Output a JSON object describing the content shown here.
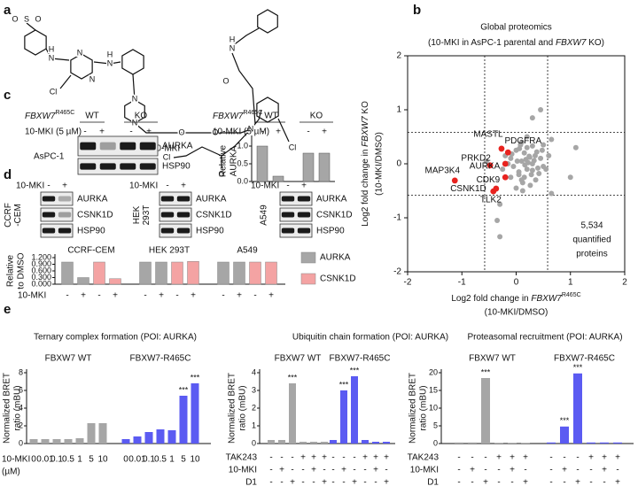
{
  "panel_labels": [
    "a",
    "b",
    "c",
    "d",
    "e"
  ],
  "a": {
    "compound": "10-MKI",
    "atoms": [
      "S",
      "O",
      "O",
      "N",
      "H",
      "N",
      "N",
      "Cl",
      "N",
      "H",
      "N",
      "N",
      "O",
      "O",
      "N",
      "N",
      "H",
      "O",
      "O",
      "Cl",
      "Cl"
    ]
  },
  "c_blot": {
    "genotype": {
      "gene": "FBXW7",
      "sup": "R465C"
    },
    "groups": [
      "WT",
      "KO"
    ],
    "treatment": "10-MKI (5 µM)",
    "signs": [
      "-",
      "+",
      "-",
      "+"
    ],
    "cell_line": "AsPC-1",
    "proteins": [
      "AURKA",
      "HSP90"
    ]
  },
  "d_blots": {
    "treatment": "10-MKI",
    "signs": [
      "-",
      "+"
    ],
    "proteins": [
      "AURKA",
      "CSNK1D",
      "HSP90"
    ],
    "cell_lines": [
      [
        "CCRF",
        "-CEM"
      ],
      [
        "HEK",
        "293T"
      ],
      [
        "A549"
      ]
    ]
  },
  "chart_data": [
    {
      "type": "scatter",
      "title": "Global proteomics",
      "subtitle": {
        "prefix": "(10-MKI in AsPC-1 parental and ",
        "gene": "FBXW7",
        "suffix": " KO)"
      },
      "xlabel": {
        "prefix": "Log2 fold change in ",
        "gene": "FBXW7",
        "sup": "R465C",
        "line2": "(10-MKI/DMSO)"
      },
      "ylabel": {
        "prefix": "Log2 fold change in ",
        "gene": "FBXW7",
        "suffix": " KO",
        "line2": "(10-MKI/DMSO)"
      },
      "xlim": [
        -2,
        2
      ],
      "ylim": [
        -2,
        2
      ],
      "xticks": [
        -2,
        -1,
        0,
        1,
        2
      ],
      "yticks": [
        -2,
        -1,
        0,
        1,
        2
      ],
      "thresholds": [
        -0.58,
        0.58
      ],
      "series": [
        {
          "color": "#a6a6a6",
          "x": [
            0.1,
            0.2,
            -0.1,
            0.05,
            0.3,
            0.15,
            -0.05,
            0.25,
            0.4,
            0.0,
            0.1,
            0.2,
            0.35,
            -0.15,
            0.05,
            0.18,
            0.28,
            0.12,
            -0.08,
            0.22,
            0.45,
            0.3,
            0.08,
            0.15,
            -0.2,
            0.5,
            0.38,
            0.02,
            0.26,
            0.1,
            0.33,
            0.6,
            0.55,
            0.2,
            -0.1,
            0.42,
            0.16,
            0.06,
            0.24,
            0.3,
            -0.25,
            0.12,
            0.48,
            0.36,
            0.0,
            -0.3,
            -0.35,
            0.45,
            0.3,
            1.1,
            1.0,
            0.65,
            -0.55,
            0.65,
            -0.3,
            0.5
          ],
          "y": [
            0.05,
            -0.1,
            0.1,
            -0.2,
            0.0,
            0.2,
            -0.05,
            0.12,
            -0.08,
            0.25,
            -0.3,
            0.3,
            0.15,
            0.0,
            -0.15,
            0.08,
            -0.2,
            -0.35,
            0.18,
            0.02,
            0.1,
            -0.12,
            0.35,
            -0.25,
            0.15,
            -0.05,
            0.22,
            0.05,
            -0.4,
            0.4,
            0.06,
            0.15,
            -0.1,
            0.5,
            -0.25,
            -0.18,
            -0.02,
            0.28,
            0.14,
            0.33,
            -0.1,
            -0.5,
            0.25,
            -0.3,
            -0.45,
            -1.35,
            -1.05,
            1.0,
            0.85,
            0.3,
            -0.25,
            -0.55,
            0.05,
            0.45,
            -0.75,
            0.35
          ]
        },
        {
          "color": "#e8231f",
          "labels": [
            "MASTL",
            "PDGFRA",
            "PRKD2",
            "AURKA",
            "MAP3K4",
            "CDK9",
            "CSNK1D",
            "TLK2"
          ],
          "x": [
            -0.27,
            -0.15,
            -0.48,
            -0.2,
            -1.13,
            -0.2,
            -0.42,
            -0.37
          ],
          "y": [
            0.28,
            0.21,
            -0.03,
            0.0,
            -0.31,
            -0.25,
            -0.51,
            -0.46
          ]
        }
      ],
      "annotation": [
        "5,534",
        "quantified",
        "proteins"
      ]
    },
    {
      "type": "bar",
      "ylabel": [
        "Relative",
        "AURKA"
      ],
      "genotype": {
        "gene": "FBXW7",
        "sup": "R465C"
      },
      "groups": [
        "WT",
        "KO"
      ],
      "treatment": "10-MKI (5 µM)",
      "categories": [
        "-",
        "+",
        "-",
        "+"
      ],
      "values": [
        1.0,
        0.15,
        0.8,
        0.8
      ],
      "color": "#a6a6a6",
      "ylim": [
        0,
        1.2
      ],
      "yticks": [
        {
          "value": 0,
          "label": "0.0"
        },
        {
          "value": 0.5,
          "label": "0.5"
        },
        {
          "value": 1,
          "label": "1.0"
        }
      ]
    },
    {
      "type": "grouped_bar",
      "ylabel": [
        "Relative",
        "to DMSO"
      ],
      "groups": [
        "CCRF-CEM",
        "HEK 293T",
        "A549"
      ],
      "treatment": "10-MKI",
      "categories": [
        "-",
        "+"
      ],
      "series": [
        {
          "name": "AURKA",
          "color": "#a6a6a6",
          "values": [
            [
              1.0,
              0.3
            ],
            [
              1.0,
              1.0
            ],
            [
              1.0,
              1.0
            ]
          ]
        },
        {
          "name": "CSNK1D",
          "color": "#f4a3a3",
          "values": [
            [
              1.0,
              0.25
            ],
            [
              1.0,
              1.03
            ],
            [
              1.0,
              1.0
            ]
          ]
        }
      ],
      "ylim": [
        0,
        1.2
      ],
      "yticks": [
        {
          "value": 0,
          "label": "0.000"
        },
        {
          "value": 0.3,
          "label": "0.300"
        },
        {
          "value": 0.6,
          "label": "0.600"
        },
        {
          "value": 0.9,
          "label": "0.900"
        },
        {
          "value": 1.2,
          "label": "1.200"
        }
      ]
    },
    {
      "type": "bar",
      "title": "Ternary complex formation (POI: AURKA)",
      "ylabel": [
        "Normalized BRET",
        "ratio (mBU)"
      ],
      "xlabel": [
        "10-MKI",
        "(µM)"
      ],
      "categories": [
        "0",
        "0.01",
        "0.1",
        "0.5",
        "1",
        "5",
        "10"
      ],
      "series": [
        {
          "name": "FBXW7 WT",
          "color": "#a6a6a6",
          "values": [
            0.5,
            0.5,
            0.5,
            0.5,
            0.6,
            2.3,
            2.3
          ]
        },
        {
          "name": "FBXW7-R465C",
          "color": "#5b5bf2",
          "values": [
            0.5,
            0.8,
            1.3,
            1.6,
            1.5,
            5.4,
            6.8
          ],
          "significance": [
            null,
            null,
            null,
            null,
            null,
            "***",
            "***"
          ]
        }
      ],
      "ylim": [
        0,
        8
      ],
      "yticks": [
        0,
        2,
        4,
        6,
        8
      ]
    },
    {
      "type": "bar",
      "title": "Ubiquitin chain formation (POI: AURKA)",
      "ylabel": [
        "Normalized BRET",
        "ratio (mBU)"
      ],
      "conditions": [
        {
          "name": "TAK243",
          "signs": [
            "-",
            "-",
            "-",
            "+",
            "+",
            "+"
          ]
        },
        {
          "name": "10-MKI",
          "signs": [
            "-",
            "+",
            "-",
            "-",
            "+",
            "-"
          ]
        },
        {
          "name": "D1",
          "signs": [
            "-",
            "-",
            "+",
            "-",
            "-",
            "+"
          ]
        }
      ],
      "series": [
        {
          "name": "FBXW7 WT",
          "color": "#a6a6a6",
          "values": [
            0.2,
            0.2,
            3.4,
            0.1,
            0.1,
            0.1
          ],
          "significance": [
            null,
            null,
            "***",
            null,
            null,
            null
          ]
        },
        {
          "name": "FBXW7-R465C",
          "color": "#5b5bf2",
          "values": [
            0.2,
            3.0,
            3.8,
            0.2,
            0.1,
            0.1
          ],
          "significance": [
            null,
            "***",
            "***",
            null,
            null,
            null
          ]
        }
      ],
      "ylim": [
        0,
        4
      ],
      "yticks": [
        0,
        1,
        2,
        3,
        4
      ]
    },
    {
      "type": "bar",
      "title": "Proteasomal recruitment (POI: AURKA)",
      "ylabel": [
        "Normalized BRET",
        "ratio (mBU)"
      ],
      "conditions": [
        {
          "name": "TAK243",
          "signs": [
            "-",
            "-",
            "-",
            "+",
            "+",
            "+"
          ]
        },
        {
          "name": "10-MKI",
          "signs": [
            "-",
            "+",
            "-",
            "-",
            "+",
            "-"
          ]
        },
        {
          "name": "D1",
          "signs": [
            "-",
            "-",
            "+",
            "-",
            "-",
            "+"
          ]
        }
      ],
      "series": [
        {
          "name": "FBXW7 WT",
          "color": "#a6a6a6",
          "values": [
            0.3,
            0.3,
            18.5,
            0.2,
            0.2,
            0.2
          ],
          "significance": [
            null,
            null,
            "***",
            null,
            null,
            null
          ]
        },
        {
          "name": "FBXW7-R465C",
          "color": "#5b5bf2",
          "values": [
            0.3,
            4.8,
            19.8,
            0.3,
            0.3,
            0.3
          ],
          "significance": [
            null,
            "***",
            "***",
            null,
            null,
            null
          ]
        }
      ],
      "ylim": [
        0,
        20
      ],
      "yticks": [
        0,
        5,
        10,
        15,
        20
      ]
    }
  ]
}
